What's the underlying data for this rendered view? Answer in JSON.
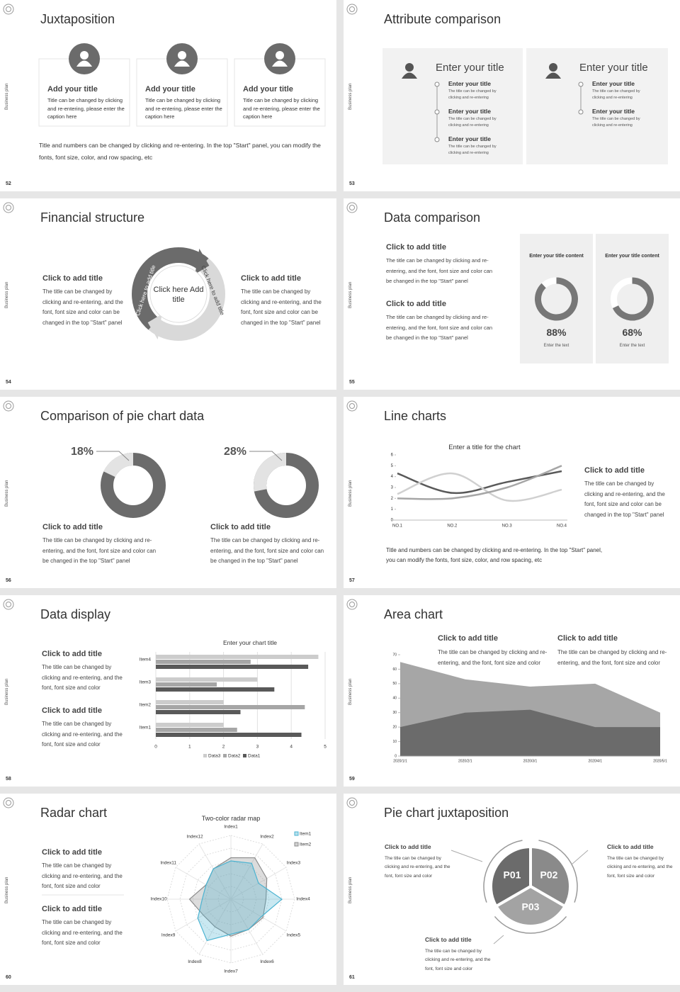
{
  "side_label": "Business plan",
  "slides": [
    {
      "number": 52,
      "title": "Juxtaposition",
      "cards": [
        {
          "title": "Add your title",
          "text": "Title can be changed by clicking and re-entering, please enter the caption here"
        },
        {
          "title": "Add your title",
          "text": "Title can be changed by clicking and re-entering, please enter the caption here"
        },
        {
          "title": "Add your title",
          "text": "Title can be changed by clicking and re-entering, please enter the caption here"
        }
      ],
      "footer": "Title and numbers can be changed by clicking and re-entering. In the top \"Start\" panel, you can modify the fonts, font size, color, and row spacing, etc"
    },
    {
      "number": 53,
      "title": "Attribute comparison",
      "panels": [
        {
          "title": "Enter your title",
          "items": [
            {
              "title": "Enter your title",
              "text": "The title can be changed by clicking and re-entering"
            },
            {
              "title": "Enter your title",
              "text": "The title can be changed by clicking and re-entering"
            },
            {
              "title": "Enter your title",
              "text": "The title can be changed by clicking and re-entering"
            }
          ]
        },
        {
          "title": "Enter your title",
          "items": [
            {
              "title": "Enter your title",
              "text": "The title can be changed by clicking and re-entering"
            },
            {
              "title": "Enter your title",
              "text": "The title can be changed by clicking and re-entering"
            }
          ]
        }
      ]
    },
    {
      "number": 54,
      "title": "Financial structure",
      "left": {
        "title": "Click to add title",
        "text": "The title can be changed by clicking and re-entering, and the font, font size and color can be changed in the top \"Start\" panel"
      },
      "right": {
        "title": "Click to add title",
        "text": "The title can be changed by clicking and re-entering, and the font, font size and color can be changed in the top \"Start\" panel"
      },
      "center": "Click here Add title",
      "arc_labels": [
        "Click here to add title",
        "Click here to add title"
      ]
    },
    {
      "number": 55,
      "title": "Data comparison",
      "blocks": [
        {
          "title": "Click to add title",
          "text": "The title can be changed by clicking and re-entering, and the font, font size and color can be changed in the top \"Start\" panel"
        },
        {
          "title": "Click to add title",
          "text": "The title can be changed by clicking and re-entering, and the font, font size and color can be changed in the top \"Start\" panel"
        }
      ],
      "cards": [
        {
          "heading": "Enter your title content",
          "value": 88,
          "value_label": "88%",
          "caption": "Enter the text"
        },
        {
          "heading": "Enter your title content",
          "value": 68,
          "value_label": "68%",
          "caption": "Enter the text"
        }
      ]
    },
    {
      "number": 56,
      "title": "Comparison of pie chart data",
      "pies": [
        {
          "value": 18,
          "value_label": "18%",
          "title": "Click to add title",
          "text": "The title can be changed by clicking and re-entering, and the font, font size and color can be changed in the top \"Start\" panel"
        },
        {
          "value": 28,
          "value_label": "28%",
          "title": "Click to add title",
          "text": "The title can be changed by clicking and re-entering, and the font, font size and color can be changed in the top \"Start\" panel"
        }
      ]
    },
    {
      "number": 57,
      "title": "Line charts",
      "chart": {
        "type": "line",
        "title": "Enter a title for the chart",
        "categories": [
          "NO.1",
          "NO.2",
          "NO.3",
          "NO.4"
        ],
        "ylim": [
          0,
          6
        ],
        "yticks": [
          0,
          1,
          2,
          3,
          4,
          5,
          6
        ],
        "series": [
          {
            "color": "#595959",
            "values": [
              4.3,
              2.5,
              3.5,
              4.5
            ]
          },
          {
            "color": "#d0d0d0",
            "values": [
              2.4,
              4.3,
              1.8,
              2.8
            ]
          },
          {
            "color": "#a6a6a6",
            "values": [
              2,
              2,
              3,
              5
            ]
          }
        ]
      },
      "block": {
        "title": "Click to add title",
        "text": "The title can be changed by clicking and re-entering, and the font, font size and color can be changed in the top \"Start\" panel"
      },
      "footer": "Title and numbers can be changed by clicking and re-entering. In the top \"Start\" panel, you can modify the fonts, font size, color, and row spacing, etc"
    },
    {
      "number": 58,
      "title": "Data display",
      "blocks": [
        {
          "title": "Click to add title",
          "text": "The title can be changed by clicking and re-entering, and the font, font size and color"
        },
        {
          "title": "Click to add title",
          "text": "The title can be changed by clicking and re-entering, and the font, font size and color"
        }
      ],
      "chart": {
        "type": "bar",
        "title": "Enter your chart title",
        "categories": [
          "Item1",
          "Item2",
          "Item3",
          "Item4"
        ],
        "xlim": [
          0,
          5
        ],
        "xticks": [
          0,
          1,
          2,
          3,
          4,
          5
        ],
        "grid": true,
        "series": [
          {
            "name": "Data1",
            "color": "#595959",
            "values": [
              4.3,
              2.5,
              3.5,
              4.5
            ]
          },
          {
            "name": "Data2",
            "color": "#a6a6a6",
            "values": [
              2.4,
              4.4,
              1.8,
              2.8
            ]
          },
          {
            "name": "Data3",
            "color": "#cccccc",
            "values": [
              2,
              2,
              3,
              4.8
            ]
          }
        ]
      }
    },
    {
      "number": 59,
      "title": "Area chart",
      "blocks": [
        {
          "title": "Click to add title",
          "text": "The title can be changed by clicking and re-entering, and the font, font size and color"
        },
        {
          "title": "Click to add title",
          "text": "The title can be changed by clicking and re-entering, and the font, font size and color"
        }
      ],
      "chart": {
        "type": "area",
        "categories": [
          "2020/1/1",
          "2020/2/1",
          "2020/3/1",
          "2020/4/1",
          "2020/5/1"
        ],
        "ylim": [
          0,
          70
        ],
        "yticks": [
          0,
          10,
          20,
          30,
          40,
          50,
          60,
          70
        ],
        "series": [
          {
            "color": "#a6a6a6",
            "values": [
              65,
              53,
              48,
              50,
              30
            ]
          },
          {
            "color": "#6b6b6b",
            "values": [
              20,
              30,
              32,
              20,
              20
            ]
          }
        ]
      }
    },
    {
      "number": 60,
      "title": "Radar chart",
      "blocks": [
        {
          "title": "Click to add title",
          "text": "The title can be changed by clicking and re-entering, and the font, font size and color"
        },
        {
          "title": "Click to add title",
          "text": "The title can be changed by clicking and re-entering, and the font, font size and color"
        }
      ],
      "chart": {
        "type": "radar",
        "title": "Two-color radar map",
        "categories": [
          "Index1",
          "Index2",
          "Index3",
          "Index4",
          "Index5",
          "Index6",
          "Index7",
          "Index8",
          "Index9",
          "Index10",
          "Index11",
          "Index12"
        ],
        "rlim": [
          0,
          10
        ],
        "rticks": [
          2,
          4,
          6,
          8,
          10
        ],
        "series": [
          {
            "name": "Item1",
            "color": "#4bb3d1",
            "values": [
              6,
              6.5,
              5,
              8,
              5.5,
              5.5,
              5.5,
              7.5,
              6,
              4.5,
              4.5,
              5.5
            ]
          },
          {
            "name": "Item2",
            "color": "#8c8c8c",
            "values": [
              6.5,
              7.5,
              6.5,
              5.5,
              5.8,
              5.5,
              5.8,
              5,
              5,
              6.5,
              4.5,
              5.5
            ]
          }
        ]
      }
    },
    {
      "number": 61,
      "title": "Pie chart juxtaposition",
      "segments": [
        "P01",
        "P02",
        "P03"
      ],
      "blocks": [
        {
          "title": "Click to add title",
          "text": "The title can be changed by clicking and re-entering, and the font, font size and color"
        },
        {
          "title": "Click to add title",
          "text": "The title can be changed by clicking and re-entering, and the font, font size and color"
        },
        {
          "title": "Click to add title",
          "text": "The title can be changed by clicking and re-entering, and the font, font size and color"
        }
      ]
    }
  ]
}
